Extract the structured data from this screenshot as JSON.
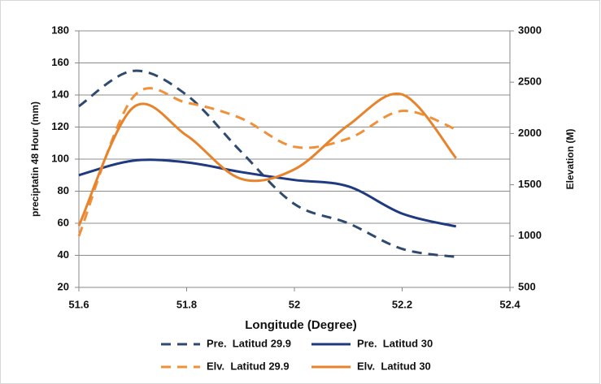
{
  "chart_data": {
    "type": "line",
    "x_label": "Longitude (Degree)",
    "y_label": "preciptatin 48 Hour (mm)",
    "y2_label": "Elevation (M)",
    "x": [
      51.6,
      51.7,
      51.8,
      51.9,
      52.0,
      52.1,
      52.2,
      52.3
    ],
    "xlim": [
      51.6,
      52.4
    ],
    "xticks": [
      51.6,
      51.8,
      52,
      52.2,
      52.4
    ],
    "ylim": [
      20,
      180
    ],
    "yticks": [
      20,
      40,
      60,
      80,
      100,
      120,
      140,
      160,
      180
    ],
    "y2lim": [
      500,
      3000
    ],
    "y2ticks": [
      500,
      1000,
      1500,
      2000,
      2500,
      3000
    ],
    "grid": true,
    "series": [
      {
        "name": "Pre.  Latitud 29.9",
        "color": "#2f4a6e",
        "line_style": "dashed",
        "values": [
          133,
          155,
          140,
          105,
          72,
          60,
          44,
          39
        ]
      },
      {
        "name": "Pre.  Latitud 30",
        "color": "#1f3a80",
        "line_style": "solid",
        "values": [
          90,
          99,
          98,
          92,
          87,
          83,
          66,
          58
        ]
      },
      {
        "name": "Elv.  Latitud 29.9",
        "color": "#f0903a",
        "line_style": "dashed",
        "axis": "y2",
        "values": [
          1000,
          2350,
          2300,
          2150,
          1870,
          1950,
          2220,
          2040
        ]
      },
      {
        "name": "Elv.  Latitud 30",
        "color": "#e8832c",
        "line_style": "solid",
        "axis": "y2",
        "values": [
          1100,
          2250,
          1980,
          1560,
          1650,
          2080,
          2380,
          1760
        ]
      }
    ]
  }
}
